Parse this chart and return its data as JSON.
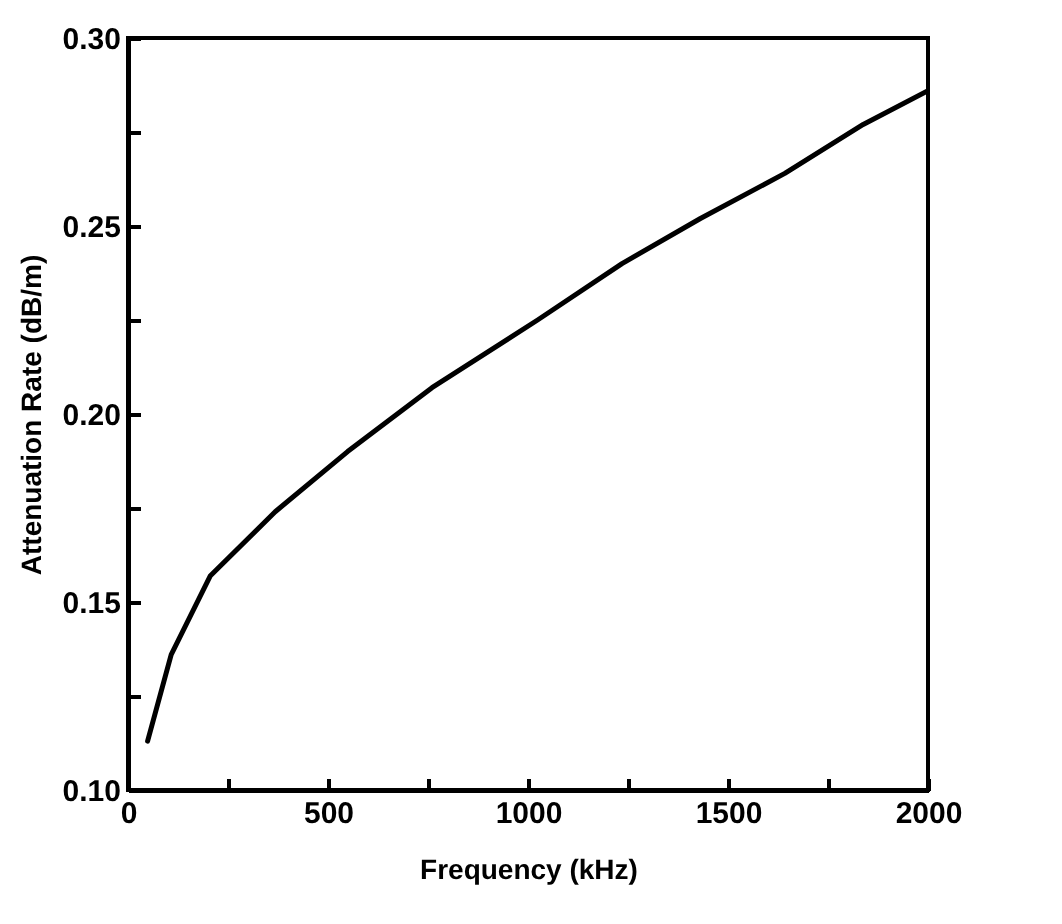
{
  "chart_data": {
    "type": "line",
    "xlabel": "Frequency (kHz)",
    "ylabel": "Attenuation Rate (dB/m)",
    "x": [
      49,
      108,
      206,
      368,
      549,
      760,
      1024,
      1235,
      1431,
      1642,
      1838,
      2000
    ],
    "series": [
      {
        "color": "#000000",
        "values": [
          0.113,
          0.136,
          0.157,
          0.174,
          0.19,
          0.207,
          0.225,
          0.24,
          0.252,
          0.264,
          0.277,
          0.286
        ]
      }
    ],
    "xlim": [
      0,
      2000
    ],
    "xticks": [
      0,
      {
        "value": 250,
        "label": null
      },
      500,
      {
        "value": 750,
        "label": null
      },
      1000,
      {
        "value": 1250,
        "label": null
      },
      1500,
      {
        "value": 1750,
        "label": null
      },
      2000
    ],
    "ylim": [
      0.1,
      0.3
    ],
    "yticks": [
      {
        "value": 0.1,
        "label": "0.10"
      },
      {
        "value": 0.125,
        "label": null
      },
      {
        "value": 0.15,
        "label": "0.15"
      },
      {
        "value": 0.175,
        "label": null
      },
      {
        "value": 0.2,
        "label": "0.20"
      },
      {
        "value": 0.225,
        "label": null
      },
      {
        "value": 0.25,
        "label": "0.25"
      },
      {
        "value": 0.275,
        "label": null
      },
      {
        "value": 0.3,
        "label": "0.30"
      }
    ],
    "grid": false,
    "legend": false,
    "marker": "none",
    "line_style": "solid"
  }
}
